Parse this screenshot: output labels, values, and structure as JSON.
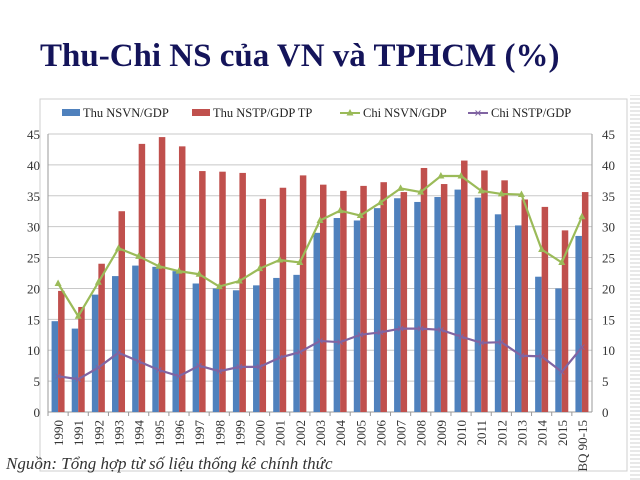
{
  "title": "Thu-Chi NS của VN và TPHCM (%)",
  "source": "Nguồn: Tổng hợp từ số liệu thống kê chính thức",
  "chart_data": {
    "type": "bar+line",
    "categories": [
      "1990",
      "1991",
      "1992",
      "1993",
      "1994",
      "1995",
      "1996",
      "1997",
      "1998",
      "1999",
      "2000",
      "2001",
      "2002",
      "2003",
      "2004",
      "2005",
      "2006",
      "2007",
      "2008",
      "2009",
      "2010",
      "2011",
      "2012",
      "2013",
      "2014",
      "2015",
      "BQ 90-15"
    ],
    "ylim": [
      0,
      45
    ],
    "yticks": [
      0,
      5,
      10,
      15,
      20,
      25,
      30,
      35,
      40,
      45
    ],
    "grid": true,
    "legend": "top",
    "series": [
      {
        "name": "Thu NSVN/GDP",
        "kind": "bar",
        "color": "#4f81bd",
        "values": [
          14.7,
          13.5,
          19,
          22,
          23.7,
          23.5,
          22.8,
          20.8,
          20,
          19.7,
          20.5,
          21.7,
          22.2,
          29,
          31.4,
          31,
          33,
          34.6,
          34,
          34.8,
          36,
          34.7,
          32,
          30.2,
          21.9,
          20,
          28.5
        ]
      },
      {
        "name": "Thu NSTP/GDP TP",
        "kind": "bar",
        "color": "#c0504d",
        "values": [
          19.6,
          17,
          24,
          32.5,
          43.4,
          44.5,
          43,
          39,
          38.9,
          38.7,
          34.5,
          36.3,
          38.3,
          36.8,
          35.8,
          36.6,
          37.2,
          35.6,
          39.5,
          36.9,
          40.7,
          39.1,
          37.5,
          34.4,
          33.2,
          29.4,
          35.6
        ]
      },
      {
        "name": "Chi NSVN/GDP",
        "kind": "line",
        "marker": "triangle",
        "color": "#9bbb59",
        "values": [
          20.8,
          15.5,
          21,
          26.5,
          25.2,
          23.6,
          22.8,
          22.3,
          20.3,
          21.2,
          23.2,
          24.6,
          24.2,
          31,
          32.6,
          31.8,
          33.9,
          36.2,
          35.6,
          38.2,
          38.2,
          35.8,
          35.3,
          35.2,
          26.3,
          24.2,
          31.6
        ]
      },
      {
        "name": "Chi NSTP/GDP",
        "kind": "line",
        "marker": "x",
        "color": "#8064a2",
        "values": [
          5.8,
          5.3,
          7.2,
          9.6,
          8.2,
          6.8,
          5.8,
          7.5,
          6.6,
          7.3,
          7.3,
          8.8,
          9.7,
          11.5,
          11.3,
          12.5,
          12.9,
          13.5,
          13.5,
          13.3,
          12.2,
          11.2,
          11.3,
          9.1,
          9.0,
          6.5,
          10.5
        ]
      }
    ]
  }
}
